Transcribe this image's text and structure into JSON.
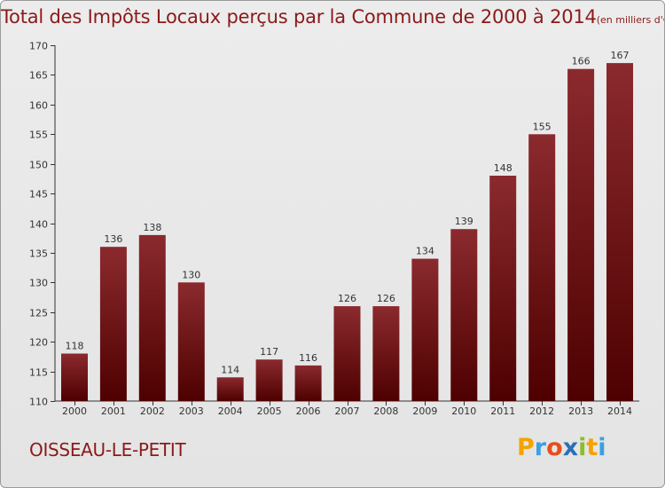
{
  "title": "Total des Impôts Locaux perçus par la Commune de 2000 à 2014",
  "unit": "(en milliers d'€)",
  "commune": "OISSEAU-LE-PETIT",
  "logo": {
    "letters": [
      "P",
      "r",
      "o",
      "x",
      "i",
      "t",
      "i"
    ],
    "colors": [
      "#f5a300",
      "#3aa0e0",
      "#e84d1b",
      "#2d6fb8",
      "#8bbd2b",
      "#f5a300",
      "#3aa0e0"
    ]
  },
  "colors": {
    "bar_top": "#8b2a2e",
    "bar_bottom": "#4e0000",
    "text_accent": "#8b1a1a"
  },
  "chart_data": {
    "type": "bar",
    "title": "Total des Impôts Locaux perçus par la Commune de 2000 à 2014",
    "xlabel": "",
    "ylabel": "",
    "categories": [
      "2000",
      "2001",
      "2002",
      "2003",
      "2004",
      "2005",
      "2006",
      "2007",
      "2008",
      "2009",
      "2010",
      "2011",
      "2012",
      "2013",
      "2014"
    ],
    "values": [
      118,
      136,
      138,
      130,
      114,
      117,
      116,
      126,
      126,
      134,
      139,
      148,
      155,
      166,
      167
    ],
    "ylim": [
      110,
      170
    ],
    "yticks": [
      110,
      115,
      120,
      125,
      130,
      135,
      140,
      145,
      150,
      155,
      160,
      165,
      170
    ],
    "grid": false
  }
}
